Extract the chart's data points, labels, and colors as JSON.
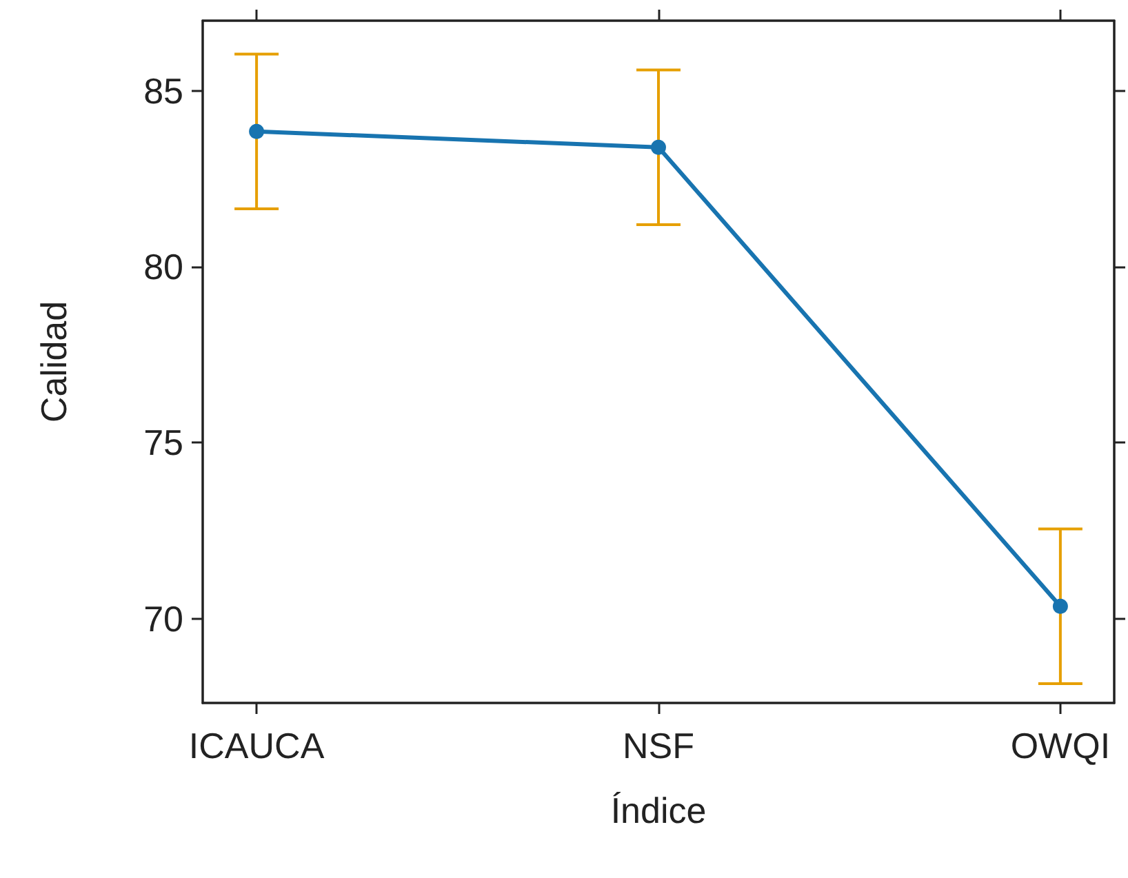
{
  "chart_data": {
    "type": "line",
    "xlabel": "Índice",
    "ylabel": "Calidad",
    "categories": [
      "ICAUCA",
      "NSF",
      "OWQI"
    ],
    "series": [
      {
        "color": "#1874b0",
        "values": [
          83.85,
          83.4,
          70.35
        ],
        "errors": [
          2.2,
          2.2,
          2.2
        ]
      }
    ],
    "ylim": [
      67.6,
      87.0
    ],
    "yticks": [
      70,
      75,
      80,
      85
    ],
    "marker": "circle",
    "line_style": "solid"
  }
}
